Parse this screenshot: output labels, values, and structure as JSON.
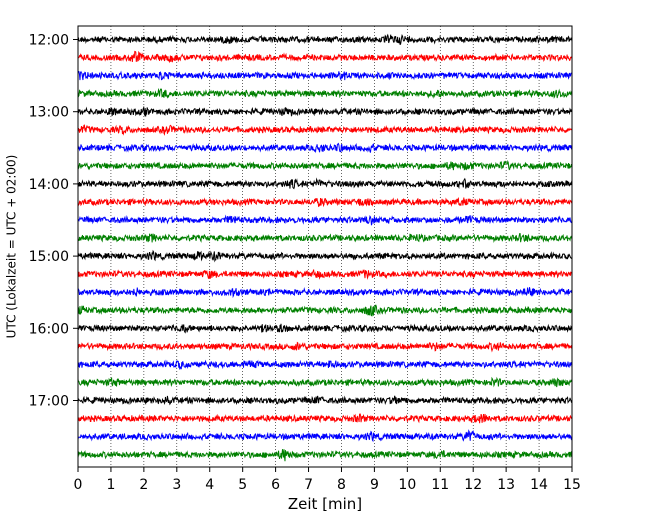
{
  "chart_data": {
    "type": "line",
    "title": "",
    "xlabel": "Zeit  [min]",
    "ylabel": "UTC (Lokalzeit = UTC + 02:00)",
    "xlim": [
      0,
      15
    ],
    "x_ticks": [
      "0",
      "1",
      "2",
      "3",
      "4",
      "5",
      "6",
      "7",
      "8",
      "9",
      "10",
      "11",
      "12",
      "13",
      "14",
      "15"
    ],
    "y_ticks": [
      "12:00",
      "13:00",
      "14:00",
      "15:00",
      "16:00",
      "17:00"
    ],
    "trace_interval_min": 15,
    "trace_start": "12:00",
    "trace_count": 24,
    "trace_colors": [
      "#000000",
      "#ff0000",
      "#0000ff",
      "#008000"
    ],
    "grid": "vertical dotted lines at each minute",
    "series": [
      {
        "label": "12:00",
        "color": "#000000"
      },
      {
        "label": "12:15",
        "color": "#ff0000"
      },
      {
        "label": "12:30",
        "color": "#0000ff"
      },
      {
        "label": "12:45",
        "color": "#008000"
      },
      {
        "label": "13:00",
        "color": "#000000"
      },
      {
        "label": "13:15",
        "color": "#ff0000"
      },
      {
        "label": "13:30",
        "color": "#0000ff"
      },
      {
        "label": "13:45",
        "color": "#008000"
      },
      {
        "label": "14:00",
        "color": "#000000"
      },
      {
        "label": "14:15",
        "color": "#ff0000"
      },
      {
        "label": "14:30",
        "color": "#0000ff"
      },
      {
        "label": "14:45",
        "color": "#008000"
      },
      {
        "label": "15:00",
        "color": "#000000"
      },
      {
        "label": "15:15",
        "color": "#ff0000"
      },
      {
        "label": "15:30",
        "color": "#0000ff"
      },
      {
        "label": "15:45",
        "color": "#008000"
      },
      {
        "label": "16:00",
        "color": "#000000"
      },
      {
        "label": "16:15",
        "color": "#ff0000"
      },
      {
        "label": "16:30",
        "color": "#0000ff"
      },
      {
        "label": "16:45",
        "color": "#008000"
      },
      {
        "label": "17:00",
        "color": "#000000"
      },
      {
        "label": "17:15",
        "color": "#ff0000"
      },
      {
        "label": "17:30",
        "color": "#0000ff"
      },
      {
        "label": "17:45",
        "color": "#008000"
      }
    ]
  }
}
